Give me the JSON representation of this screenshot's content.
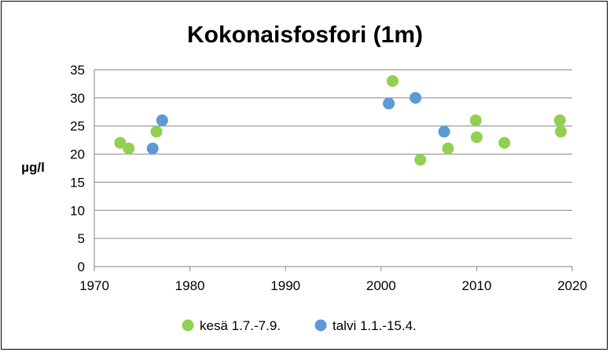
{
  "chart_data": {
    "type": "scatter",
    "title": "Kokonaisfosfori (1m)",
    "xlabel": "",
    "ylabel": "µg/l",
    "xlim": [
      1970,
      2020
    ],
    "ylim": [
      0,
      35
    ],
    "xticks": [
      1970,
      1980,
      1990,
      2000,
      2010,
      2020
    ],
    "yticks": [
      0,
      5,
      10,
      15,
      20,
      25,
      30,
      35
    ],
    "grid": "horizontal",
    "legend": "bottom",
    "series": [
      {
        "name": "kesä 1.7.-7.9.",
        "color": "#92d050",
        "points": [
          {
            "x": 1972.7,
            "y": 22
          },
          {
            "x": 1973.6,
            "y": 21
          },
          {
            "x": 1976.5,
            "y": 24
          },
          {
            "x": 2001.2,
            "y": 33
          },
          {
            "x": 2004.1,
            "y": 19
          },
          {
            "x": 2007.0,
            "y": 21
          },
          {
            "x": 2009.9,
            "y": 26
          },
          {
            "x": 2010.0,
            "y": 23
          },
          {
            "x": 2012.9,
            "y": 22
          },
          {
            "x": 2018.7,
            "y": 26
          },
          {
            "x": 2018.8,
            "y": 24
          }
        ]
      },
      {
        "name": "talvi 1.1.-15.4.",
        "color": "#5b9bd5",
        "points": [
          {
            "x": 1976.1,
            "y": 21
          },
          {
            "x": 1977.1,
            "y": 26
          },
          {
            "x": 2000.8,
            "y": 29
          },
          {
            "x": 2003.6,
            "y": 30
          },
          {
            "x": 2006.6,
            "y": 24
          }
        ]
      }
    ]
  }
}
